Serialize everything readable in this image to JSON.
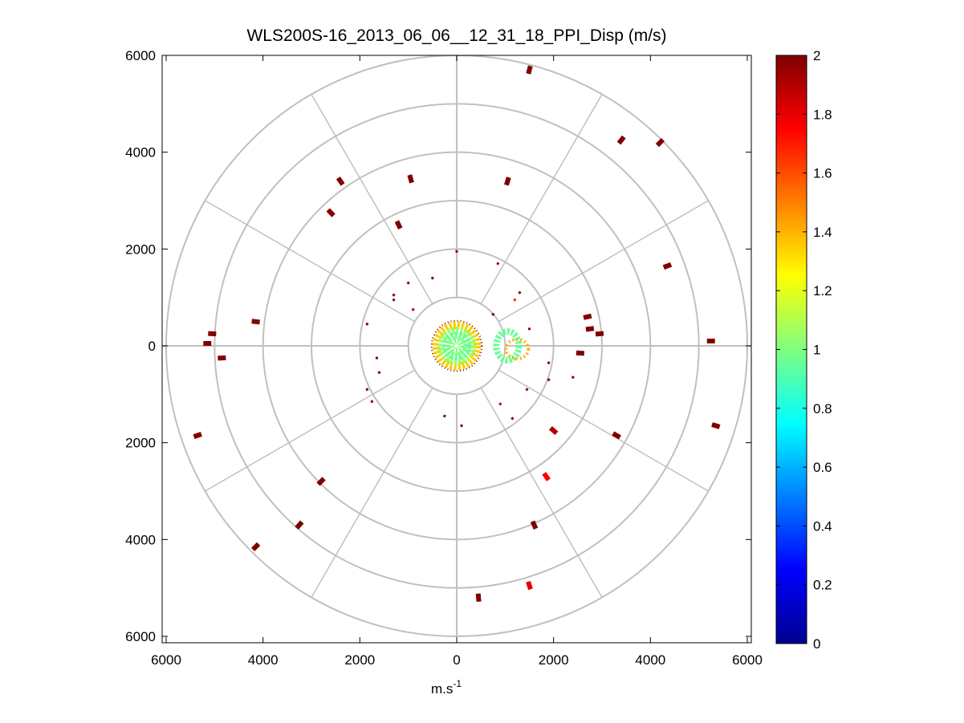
{
  "chart_data": {
    "type": "scatter",
    "subtype": "polar-ppi",
    "title": "WLS200S-16_2013_06_06__12_31_18_PPI_Disp (m/s)",
    "xlabel_base": "m.s",
    "xlabel_sup": "-1",
    "ylabel": "",
    "xlim": [
      -6000,
      6000
    ],
    "ylim": [
      -6000,
      6000
    ],
    "x_ticks": [
      {
        "value": -6000,
        "label": "6000"
      },
      {
        "value": -4000,
        "label": "4000"
      },
      {
        "value": -2000,
        "label": "2000"
      },
      {
        "value": 0,
        "label": "0"
      },
      {
        "value": 2000,
        "label": "2000"
      },
      {
        "value": 4000,
        "label": "4000"
      },
      {
        "value": 6000,
        "label": "6000"
      }
    ],
    "y_ticks": [
      {
        "value": 6000,
        "label": "6000"
      },
      {
        "value": 4000,
        "label": "4000"
      },
      {
        "value": 2000,
        "label": "2000"
      },
      {
        "value": 0,
        "label": "0"
      },
      {
        "value": -2000,
        "label": "2000"
      },
      {
        "value": -4000,
        "label": "4000"
      },
      {
        "value": -6000,
        "label": "6000"
      }
    ],
    "range_rings": [
      1000,
      2000,
      3000,
      4000,
      5000,
      6000
    ],
    "spoke_angles_deg": [
      0,
      30,
      60,
      90,
      120,
      150,
      180,
      210,
      240,
      270,
      300,
      330
    ],
    "colorbar": {
      "min": 0,
      "max": 2,
      "ticks": [
        {
          "value": 0,
          "label": "0"
        },
        {
          "value": 0.2,
          "label": "0.2"
        },
        {
          "value": 0.4,
          "label": "0.4"
        },
        {
          "value": 0.6,
          "label": "0.6"
        },
        {
          "value": 0.8,
          "label": "0.8"
        },
        {
          "value": 1,
          "label": "1"
        },
        {
          "value": 1.2,
          "label": "1.2"
        },
        {
          "value": 1.4,
          "label": "1.4"
        },
        {
          "value": 1.6,
          "label": "1.6"
        },
        {
          "value": 1.8,
          "label": "1.8"
        },
        {
          "value": 2,
          "label": "2"
        }
      ]
    },
    "points": [
      {
        "x": 1500,
        "y": 5700,
        "v": 2
      },
      {
        "x": 3400,
        "y": 4250,
        "v": 2
      },
      {
        "x": 4200,
        "y": 4200,
        "v": 2
      },
      {
        "x": -2400,
        "y": 3400,
        "v": 2
      },
      {
        "x": -950,
        "y": 3450,
        "v": 2
      },
      {
        "x": 1050,
        "y": 3400,
        "v": 2
      },
      {
        "x": -2600,
        "y": 2750,
        "v": 2
      },
      {
        "x": -1200,
        "y": 2500,
        "v": 2
      },
      {
        "x": 4350,
        "y": 1650,
        "v": 2
      },
      {
        "x": -4150,
        "y": 500,
        "v": 2
      },
      {
        "x": -5050,
        "y": 250,
        "v": 2
      },
      {
        "x": -5150,
        "y": 50,
        "v": 2
      },
      {
        "x": -4850,
        "y": -250,
        "v": 2
      },
      {
        "x": 2700,
        "y": 600,
        "v": 2
      },
      {
        "x": 2750,
        "y": 350,
        "v": 2
      },
      {
        "x": 2950,
        "y": 250,
        "v": 2
      },
      {
        "x": 5250,
        "y": 100,
        "v": 2
      },
      {
        "x": 2550,
        "y": -150,
        "v": 2
      },
      {
        "x": 2400,
        "y": -650,
        "v": 2
      },
      {
        "x": -5350,
        "y": -1850,
        "v": 2
      },
      {
        "x": 5350,
        "y": -1650,
        "v": 2
      },
      {
        "x": 3300,
        "y": -1850,
        "v": 2
      },
      {
        "x": 2000,
        "y": -1750,
        "v": 1.9
      },
      {
        "x": -2800,
        "y": -2800,
        "v": 2
      },
      {
        "x": 1850,
        "y": -2700,
        "v": 1.75
      },
      {
        "x": -3250,
        "y": -3700,
        "v": 2
      },
      {
        "x": 1600,
        "y": -3700,
        "v": 2
      },
      {
        "x": -4150,
        "y": -4150,
        "v": 2
      },
      {
        "x": 1500,
        "y": -4950,
        "v": 1.8
      },
      {
        "x": 450,
        "y": -5200,
        "v": 2
      },
      {
        "x": 0,
        "y": 1950,
        "v": 2
      },
      {
        "x": 850,
        "y": 1700,
        "v": 1.9
      },
      {
        "x": -500,
        "y": 1400,
        "v": 2
      },
      {
        "x": -1000,
        "y": 1300,
        "v": 2
      },
      {
        "x": -1300,
        "y": 1050,
        "v": 2
      },
      {
        "x": 1300,
        "y": 1100,
        "v": 2
      },
      {
        "x": 1200,
        "y": 950,
        "v": 1.7
      },
      {
        "x": -1300,
        "y": 950,
        "v": 2
      },
      {
        "x": -900,
        "y": 750,
        "v": 1.9
      },
      {
        "x": 750,
        "y": 650,
        "v": 2
      },
      {
        "x": -1850,
        "y": 450,
        "v": 2
      },
      {
        "x": 1500,
        "y": 350,
        "v": 2
      },
      {
        "x": -1650,
        "y": -250,
        "v": 2
      },
      {
        "x": 1900,
        "y": -350,
        "v": 2
      },
      {
        "x": -1600,
        "y": -550,
        "v": 2
      },
      {
        "x": 1900,
        "y": -700,
        "v": 2
      },
      {
        "x": -1850,
        "y": -900,
        "v": 2
      },
      {
        "x": 1450,
        "y": -900,
        "v": 2
      },
      {
        "x": -1750,
        "y": -1150,
        "v": 2
      },
      {
        "x": 900,
        "y": -1200,
        "v": 1.9
      },
      {
        "x": -250,
        "y": -1450,
        "v": 2
      },
      {
        "x": 1150,
        "y": -1500,
        "v": 2
      },
      {
        "x": 100,
        "y": -1650,
        "v": 2
      }
    ],
    "core": [
      {
        "r": 420,
        "v": 1.35
      },
      {
        "r": 320,
        "v": 1.05
      },
      {
        "r": 220,
        "v": 0.95
      },
      {
        "r": 120,
        "v": 1.0
      }
    ],
    "side_blob": {
      "x": 1050,
      "y": 0,
      "v": 0.95
    }
  }
}
